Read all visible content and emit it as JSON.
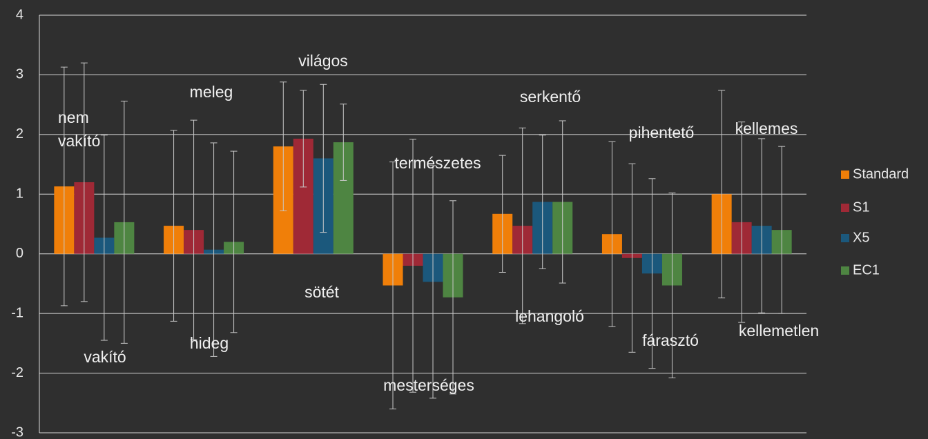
{
  "chart_data": {
    "type": "bar",
    "categories": [
      null,
      null,
      null,
      null,
      null,
      null,
      null
    ],
    "upper_labels": [
      "nem vakító",
      "meleg",
      "világos",
      "természetes",
      "serkentő",
      "pihentető",
      "kellemes"
    ],
    "lower_labels": [
      "vakító",
      "hideg",
      "sötét",
      "mesterséges",
      "lehangoló",
      "fárasztó",
      "kellemetlen"
    ],
    "series": [
      {
        "name": "Standard",
        "color": "#f07f09",
        "values": [
          1.13,
          0.47,
          1.8,
          -0.53,
          0.67,
          0.33,
          1.0
        ],
        "errors": [
          2.0,
          1.6,
          1.08,
          2.07,
          0.98,
          1.55,
          1.74
        ]
      },
      {
        "name": "S1",
        "color": "#9f2936",
        "values": [
          1.2,
          0.4,
          1.93,
          -0.2,
          0.47,
          -0.07,
          0.53
        ],
        "errors": [
          2.0,
          1.84,
          0.81,
          2.12,
          1.64,
          1.58,
          1.68
        ]
      },
      {
        "name": "X5",
        "color": "#1b587c",
        "values": [
          0.27,
          0.07,
          1.6,
          -0.47,
          0.87,
          -0.33,
          0.47
        ],
        "errors": [
          1.72,
          1.79,
          1.24,
          1.95,
          1.12,
          1.59,
          1.46
        ]
      },
      {
        "name": "EC1",
        "color": "#4e8542",
        "values": [
          0.53,
          0.2,
          1.87,
          -0.73,
          0.87,
          -0.53,
          0.4
        ],
        "errors": [
          2.03,
          1.52,
          0.64,
          1.62,
          1.36,
          1.55,
          1.4
        ]
      }
    ],
    "ylim": [
      -3,
      4
    ],
    "yticks": [
      -3,
      -2,
      -1,
      0,
      1,
      2,
      3,
      4
    ],
    "grid": true,
    "legend": "right"
  }
}
